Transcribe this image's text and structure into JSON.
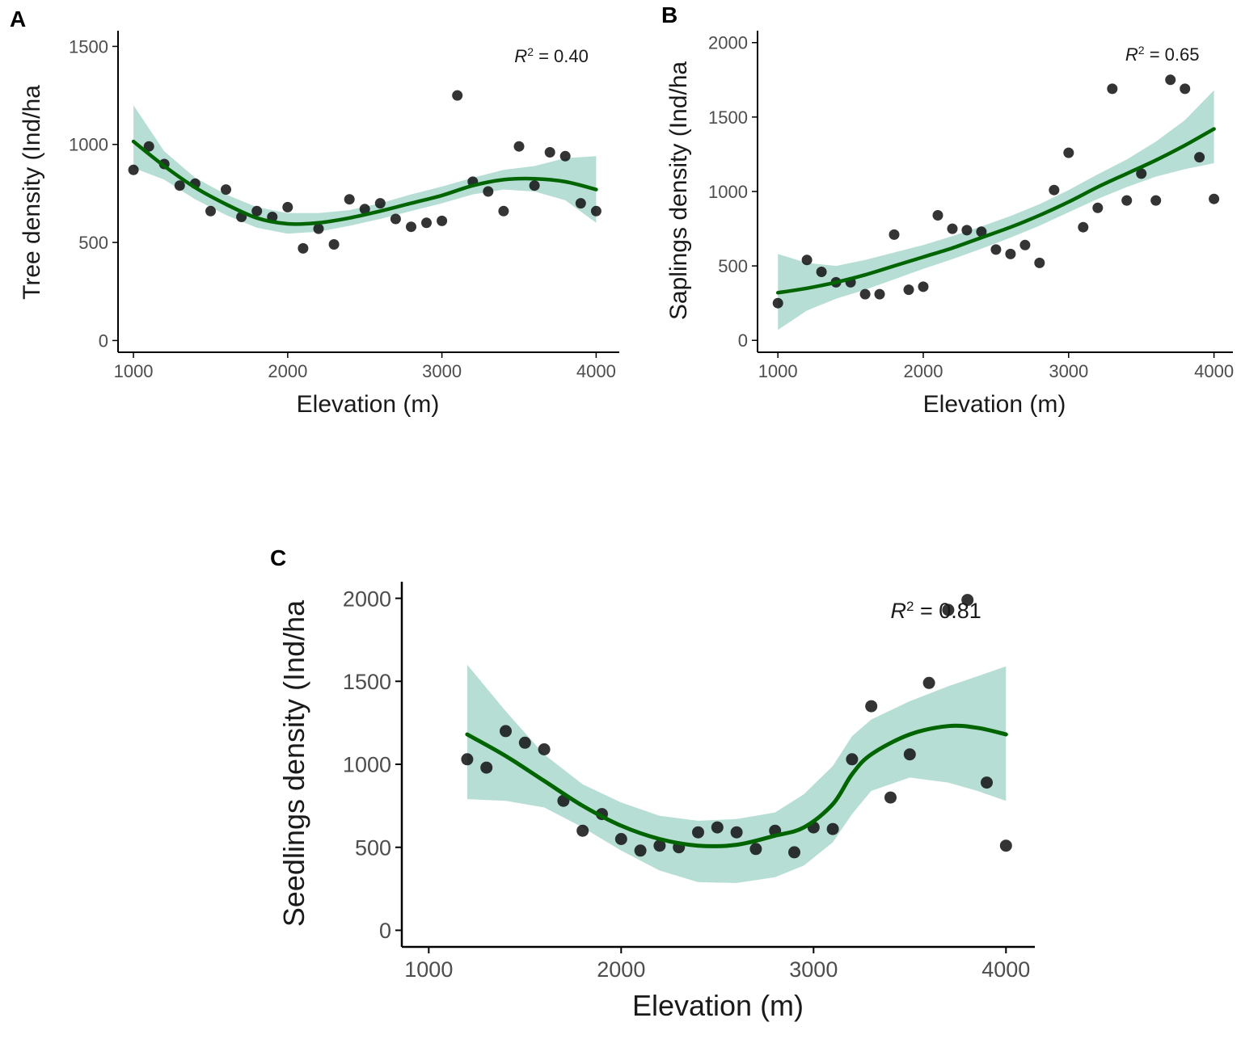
{
  "colors": {
    "points": "#111111",
    "fit_line": "#006400",
    "ribbon": "#9fd3c7",
    "axis": "#000000",
    "tick_text": "#4d4d4d"
  },
  "chart_data": [
    {
      "type": "scatter",
      "panel": "A",
      "xlabel": "Elevation (m)",
      "ylabel": "Tree density (Ind/ha",
      "xlim": [
        900,
        4150
      ],
      "ylim": [
        -60,
        1580
      ],
      "xticks": [
        1000,
        2000,
        3000,
        4000
      ],
      "yticks": [
        0,
        500,
        1000,
        1500
      ],
      "annotation": {
        "prefix": "R",
        "sup": "2",
        "suffix": " = 0.40",
        "x": 3470,
        "y": 1420
      },
      "points": {
        "x": [
          1000,
          1100,
          1200,
          1300,
          1400,
          1500,
          1600,
          1700,
          1800,
          1900,
          2000,
          2100,
          2200,
          2300,
          2400,
          2500,
          2600,
          2700,
          2800,
          2900,
          3000,
          3100,
          3200,
          3300,
          3400,
          3500,
          3600,
          3700,
          3800,
          3900,
          4000
        ],
        "y": [
          870,
          990,
          900,
          790,
          800,
          660,
          770,
          630,
          660,
          630,
          680,
          470,
          570,
          490,
          720,
          670,
          700,
          620,
          580,
          600,
          610,
          1250,
          810,
          760,
          660,
          990,
          790,
          960,
          940,
          700,
          660
        ]
      },
      "fit": {
        "x": [
          1000,
          1200,
          1400,
          1600,
          1800,
          2000,
          2200,
          2400,
          2600,
          2800,
          3000,
          3200,
          3400,
          3600,
          3800,
          4000
        ],
        "y": [
          1015,
          890,
          780,
          695,
          625,
          595,
          600,
          625,
          660,
          700,
          740,
          790,
          820,
          825,
          810,
          770
        ],
        "lower": [
          880,
          820,
          720,
          640,
          575,
          545,
          555,
          585,
          620,
          660,
          700,
          745,
          770,
          760,
          715,
          600
        ],
        "upper": [
          1200,
          965,
          830,
          745,
          680,
          650,
          650,
          665,
          700,
          745,
          785,
          830,
          870,
          890,
          930,
          940
        ]
      }
    },
    {
      "type": "scatter",
      "panel": "B",
      "xlabel": "Elevation (m)",
      "ylabel": "Saplings density (Ind/ha",
      "xlim": [
        860,
        4130
      ],
      "ylim": [
        -80,
        2080
      ],
      "xticks": [
        1000,
        2000,
        3000,
        4000
      ],
      "yticks": [
        0,
        500,
        1000,
        1500,
        2000
      ],
      "annotation": {
        "prefix": "R",
        "sup": "2",
        "suffix": " = 0.65",
        "x": 3390,
        "y": 1880
      },
      "points": {
        "x": [
          1000,
          1200,
          1300,
          1400,
          1500,
          1600,
          1700,
          1800,
          1900,
          2000,
          2100,
          2200,
          2300,
          2400,
          2500,
          2600,
          2700,
          2800,
          2900,
          3000,
          3100,
          3200,
          3300,
          3400,
          3500,
          3600,
          3700,
          3800,
          3900,
          4000
        ],
        "y": [
          250,
          540,
          460,
          390,
          390,
          310,
          310,
          710,
          340,
          360,
          840,
          750,
          740,
          730,
          610,
          580,
          640,
          520,
          1010,
          1260,
          760,
          890,
          1690,
          940,
          1120,
          940,
          1750,
          1690,
          1230,
          950
        ]
      },
      "fit": {
        "x": [
          1000,
          1200,
          1400,
          1600,
          1800,
          2000,
          2200,
          2400,
          2600,
          2800,
          3000,
          3200,
          3400,
          3600,
          3800,
          4000
        ],
        "y": [
          320,
          350,
          390,
          440,
          500,
          560,
          620,
          690,
          760,
          840,
          930,
          1030,
          1120,
          1210,
          1310,
          1420
        ],
        "lower": [
          70,
          200,
          280,
          340,
          410,
          480,
          545,
          615,
          690,
          770,
          860,
          950,
          1030,
          1100,
          1150,
          1190
        ],
        "upper": [
          580,
          520,
          500,
          540,
          590,
          640,
          700,
          765,
          835,
          915,
          1010,
          1115,
          1215,
          1335,
          1480,
          1680
        ]
      }
    },
    {
      "type": "scatter",
      "panel": "C",
      "xlabel": "Elevation (m)",
      "ylabel": "Seedlings density (Ind/ha",
      "xlim": [
        860,
        4150
      ],
      "ylim": [
        -100,
        2100
      ],
      "xticks": [
        1000,
        2000,
        3000,
        4000
      ],
      "yticks": [
        0,
        500,
        1000,
        1500,
        2000
      ],
      "annotation": {
        "prefix": "R",
        "sup": "2",
        "suffix": " = 0.81",
        "x": 3400,
        "y": 1880
      },
      "points": {
        "x": [
          1200,
          1300,
          1400,
          1500,
          1600,
          1700,
          1800,
          1900,
          2000,
          2100,
          2200,
          2300,
          2400,
          2500,
          2600,
          2700,
          2800,
          2900,
          3000,
          3100,
          3200,
          3300,
          3400,
          3500,
          3600,
          3700,
          3800,
          3900,
          4000
        ],
        "y": [
          1030,
          980,
          1200,
          1130,
          1090,
          780,
          600,
          700,
          550,
          480,
          510,
          500,
          590,
          620,
          590,
          490,
          600,
          470,
          620,
          610,
          1030,
          1350,
          800,
          1060,
          1490,
          1930,
          1990,
          890,
          510
        ]
      },
      "fit": {
        "x": [
          1200,
          1400,
          1600,
          1800,
          2000,
          2200,
          2400,
          2600,
          2800,
          2950,
          3100,
          3200,
          3300,
          3500,
          3700,
          3850,
          4000
        ],
        "y": [
          1180,
          1050,
          900,
          750,
          630,
          550,
          510,
          515,
          570,
          620,
          760,
          940,
          1060,
          1180,
          1230,
          1220,
          1180
        ],
        "lower": [
          790,
          780,
          740,
          620,
          480,
          360,
          290,
          285,
          320,
          390,
          530,
          700,
          840,
          920,
          890,
          840,
          780
        ],
        "upper": [
          1600,
          1320,
          1060,
          880,
          770,
          690,
          660,
          670,
          710,
          820,
          990,
          1170,
          1270,
          1380,
          1470,
          1530,
          1590
        ]
      }
    }
  ],
  "labels": {
    "panel_a": "A",
    "panel_b": "B",
    "panel_c": "C"
  }
}
